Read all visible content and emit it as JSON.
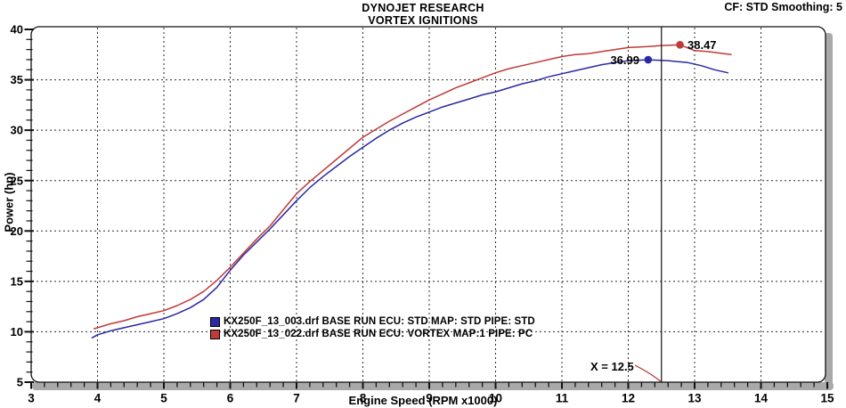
{
  "header": {
    "title": "DYNOJET RESEARCH",
    "subtitle": "VORTEX IGNITIONS",
    "settings": "CF: STD  Smoothing: 5"
  },
  "chart_data": {
    "type": "line",
    "title": "DYNOJET RESEARCH",
    "subtitle": "VORTEX IGNITIONS",
    "xlabel": "Engine Speed (RPM x1000)",
    "ylabel": "Power (hp)",
    "xlim": [
      3,
      15
    ],
    "ylim": [
      5,
      40
    ],
    "x_major_ticks": [
      3,
      4,
      5,
      6,
      7,
      8,
      9,
      10,
      11,
      12,
      13,
      14,
      15
    ],
    "x_minor_step": 0.2,
    "y_major_ticks": [
      5,
      10,
      15,
      20,
      25,
      30,
      35,
      40
    ],
    "y_minor_step": 1,
    "grid_x": [
      4,
      5,
      6,
      7,
      8,
      9,
      10,
      11,
      12,
      13,
      14
    ],
    "grid_y": [
      10,
      15,
      20,
      25,
      30,
      35
    ],
    "grid_style": "dashed",
    "legend_position": "lower-center-left",
    "cursor": {
      "x": 12.5,
      "label": "X = 12.5"
    },
    "colors": {
      "axis_band": "#a9a9a9",
      "grid": "#2b2b2b",
      "frame": "#111111",
      "cursor_line": "#111111",
      "cursor_pointer": "#b03030"
    },
    "series": [
      {
        "name": "KX250F_13_003.drf BASE RUN ECU: STD MAP: STD PIPE: STD",
        "color": "#2929a3",
        "peak": {
          "x": 12.3,
          "y": 36.99,
          "label": "36.99",
          "label_side": "left"
        },
        "points": [
          [
            3.92,
            9.4
          ],
          [
            4.0,
            9.7
          ],
          [
            4.2,
            10.1
          ],
          [
            4.4,
            10.4
          ],
          [
            4.6,
            10.7
          ],
          [
            4.8,
            11.0
          ],
          [
            5.0,
            11.3
          ],
          [
            5.2,
            11.8
          ],
          [
            5.4,
            12.4
          ],
          [
            5.6,
            13.2
          ],
          [
            5.8,
            14.4
          ],
          [
            6.0,
            16.1
          ],
          [
            6.2,
            17.6
          ],
          [
            6.4,
            18.9
          ],
          [
            6.6,
            20.2
          ],
          [
            6.8,
            21.6
          ],
          [
            7.0,
            23.0
          ],
          [
            7.2,
            24.3
          ],
          [
            7.4,
            25.4
          ],
          [
            7.6,
            26.4
          ],
          [
            7.8,
            27.4
          ],
          [
            8.0,
            28.3
          ],
          [
            8.2,
            29.2
          ],
          [
            8.4,
            30.0
          ],
          [
            8.6,
            30.7
          ],
          [
            8.8,
            31.3
          ],
          [
            9.0,
            31.8
          ],
          [
            9.2,
            32.3
          ],
          [
            9.4,
            32.7
          ],
          [
            9.6,
            33.1
          ],
          [
            9.8,
            33.5
          ],
          [
            10.0,
            33.8
          ],
          [
            10.2,
            34.2
          ],
          [
            10.4,
            34.6
          ],
          [
            10.6,
            34.9
          ],
          [
            10.8,
            35.3
          ],
          [
            11.0,
            35.6
          ],
          [
            11.2,
            35.9
          ],
          [
            11.4,
            36.2
          ],
          [
            11.6,
            36.5
          ],
          [
            11.8,
            36.7
          ],
          [
            12.0,
            36.9
          ],
          [
            12.3,
            36.99
          ],
          [
            12.6,
            36.9
          ],
          [
            12.9,
            36.7
          ],
          [
            13.1,
            36.4
          ],
          [
            13.3,
            36.0
          ],
          [
            13.5,
            35.7
          ]
        ]
      },
      {
        "name": "KX250F_13_022.drf BASE RUN ECU: VORTEX MAP:1  PIPE: PC",
        "color": "#c03a3a",
        "peak": {
          "x": 12.78,
          "y": 38.47,
          "label": "38.47",
          "label_side": "right"
        },
        "points": [
          [
            3.95,
            10.3
          ],
          [
            4.0,
            10.4
          ],
          [
            4.2,
            10.8
          ],
          [
            4.4,
            11.1
          ],
          [
            4.6,
            11.5
          ],
          [
            4.8,
            11.8
          ],
          [
            5.0,
            12.1
          ],
          [
            5.2,
            12.6
          ],
          [
            5.4,
            13.2
          ],
          [
            5.6,
            14.0
          ],
          [
            5.8,
            15.1
          ],
          [
            6.0,
            16.4
          ],
          [
            6.2,
            17.8
          ],
          [
            6.4,
            19.2
          ],
          [
            6.6,
            20.5
          ],
          [
            6.8,
            22.1
          ],
          [
            7.0,
            23.7
          ],
          [
            7.2,
            24.9
          ],
          [
            7.4,
            26.0
          ],
          [
            7.6,
            27.1
          ],
          [
            7.8,
            28.2
          ],
          [
            8.0,
            29.3
          ],
          [
            8.2,
            30.1
          ],
          [
            8.4,
            30.9
          ],
          [
            8.6,
            31.6
          ],
          [
            8.8,
            32.3
          ],
          [
            9.0,
            33.0
          ],
          [
            9.2,
            33.6
          ],
          [
            9.4,
            34.2
          ],
          [
            9.6,
            34.7
          ],
          [
            9.8,
            35.2
          ],
          [
            10.0,
            35.7
          ],
          [
            10.2,
            36.1
          ],
          [
            10.4,
            36.4
          ],
          [
            10.6,
            36.7
          ],
          [
            10.8,
            37.0
          ],
          [
            11.0,
            37.3
          ],
          [
            11.2,
            37.5
          ],
          [
            11.4,
            37.6
          ],
          [
            11.6,
            37.8
          ],
          [
            11.8,
            38.0
          ],
          [
            12.0,
            38.2
          ],
          [
            12.3,
            38.3
          ],
          [
            12.5,
            38.4
          ],
          [
            12.78,
            38.47
          ],
          [
            13.0,
            37.9
          ],
          [
            13.2,
            37.8
          ],
          [
            13.55,
            37.5
          ]
        ]
      }
    ]
  }
}
